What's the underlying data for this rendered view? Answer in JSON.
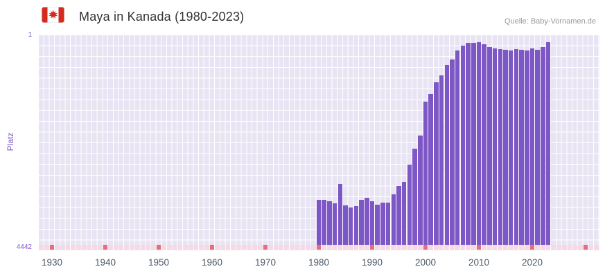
{
  "header": {
    "title": "Maya in Kanada (1980-2023)",
    "source": "Quelle: Baby-Vornamen.de",
    "flag": "canada-flag-icon"
  },
  "axes": {
    "y_label": "Platz",
    "y_top_tick": "1",
    "y_bottom_tick": "4442",
    "x_tick_labels": [
      "1930",
      "1940",
      "1950",
      "1960",
      "1970",
      "1980",
      "1990",
      "2000",
      "2010",
      "2020"
    ]
  },
  "colors": {
    "bar": "#7d57c5",
    "plot_background": "#e9e4f3",
    "grid_line": "#ffffff",
    "axis_text": "#7e57c2",
    "strip_light": "#f6d9e4",
    "strip_dark": "#e2707e",
    "flag_red": "#d52b1e"
  },
  "chart_data": {
    "type": "bar",
    "title": "Maya in Kanada (1980-2023)",
    "xlabel": "",
    "ylabel": "Platz",
    "y_axis": {
      "inverted": true,
      "min": 1,
      "max": 4442
    },
    "x_range": [
      1928,
      2032
    ],
    "x_tick_years": [
      1930,
      1940,
      1950,
      1960,
      1970,
      1980,
      1990,
      2000,
      2010,
      2020
    ],
    "legend": "off",
    "grid": "on",
    "categories": [
      1980,
      1981,
      1982,
      1983,
      1984,
      1985,
      1986,
      1987,
      1988,
      1989,
      1990,
      1991,
      1992,
      1993,
      1994,
      1995,
      1996,
      1997,
      1998,
      1999,
      2000,
      2001,
      2002,
      2003,
      2004,
      2005,
      2006,
      2007,
      2008,
      2009,
      2010,
      2011,
      2012,
      2013,
      2014,
      2015,
      2016,
      2017,
      2018,
      2019,
      2020,
      2021,
      2022,
      2023
    ],
    "values": [
      3490,
      3490,
      3520,
      3560,
      3150,
      3610,
      3660,
      3620,
      3490,
      3450,
      3520,
      3590,
      3550,
      3550,
      3380,
      3200,
      3110,
      2750,
      2410,
      2130,
      1420,
      1260,
      1010,
      860,
      650,
      530,
      340,
      240,
      180,
      175,
      165,
      210,
      265,
      295,
      310,
      325,
      340,
      310,
      325,
      340,
      295,
      320,
      265,
      165
    ],
    "missing_data_strip": {
      "dark_every_years": 10,
      "dark_on_decade": true
    }
  }
}
